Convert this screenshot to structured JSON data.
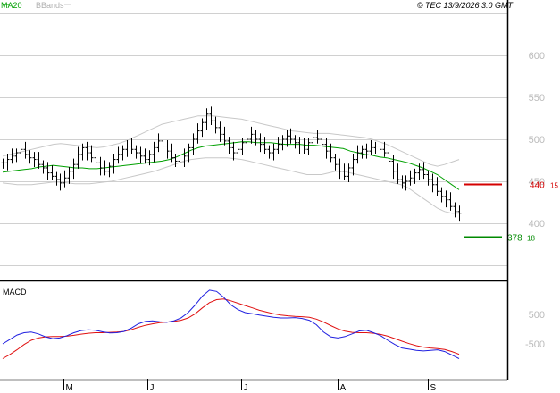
{
  "header": {
    "ma_label": "MA20",
    "bb_label": "BBands",
    "timestamp": "© TEC 13/9/2026 3:0 GMT"
  },
  "colors": {
    "ma": "#00a000",
    "bbands": "#c8c8c8",
    "macd": "#2020e0",
    "signal": "#e01010",
    "candle": "#000000",
    "resistance": "#d40000",
    "support": "#008a00",
    "grid": "#d0d0d0",
    "frame": "#000000"
  },
  "x_labels": [
    "M",
    "J",
    "J",
    "A",
    "S"
  ],
  "chart_data": [
    {
      "type": "candlestick",
      "title": "",
      "ylim": [
        380,
        640
      ],
      "y_ticks": [
        "600",
        "550",
        "500",
        "450",
        "400"
      ],
      "series": [
        {
          "name": "Price",
          "values": [
            472,
            476,
            480,
            484,
            488,
            482,
            478,
            476,
            470,
            466,
            460,
            456,
            452,
            448,
            454,
            462,
            470,
            482,
            490,
            484,
            478,
            472,
            466,
            462,
            468,
            476,
            482,
            488,
            492,
            488,
            484,
            480,
            476,
            482,
            490,
            498,
            492,
            486,
            478,
            474,
            472,
            480,
            490,
            500,
            510,
            520,
            530,
            522,
            514,
            506,
            498,
            490,
            484,
            488,
            496,
            500,
            506,
            500,
            494,
            488,
            484,
            488,
            494,
            500,
            504,
            500,
            496,
            492,
            488,
            496,
            502,
            500,
            494,
            486,
            478,
            470,
            462,
            456,
            466,
            476,
            484,
            488,
            486,
            490,
            492,
            488,
            484,
            474,
            462,
            452,
            448,
            450,
            454,
            460,
            464,
            458,
            452,
            446,
            438,
            432,
            428,
            420,
            414,
            412
          ]
        },
        {
          "name": "MA20",
          "values": [
            461,
            462,
            463,
            464,
            465,
            467,
            468,
            469,
            468,
            467,
            466,
            466,
            465,
            465,
            466,
            467,
            468,
            469,
            470,
            471,
            472,
            473,
            474,
            476,
            479,
            483,
            487,
            490,
            492,
            493,
            494,
            495,
            496,
            497,
            497,
            496,
            496,
            496,
            495,
            494,
            494,
            494,
            493,
            493,
            492,
            491,
            490,
            489,
            486,
            484,
            482,
            481,
            479,
            478,
            476,
            474,
            472,
            469,
            466,
            462,
            458,
            452,
            446,
            440
          ]
        },
        {
          "name": "BBands upper",
          "values": [
            480,
            482,
            484,
            486,
            488,
            490,
            492,
            494,
            495,
            494,
            493,
            492,
            491,
            490,
            491,
            493,
            495,
            498,
            502,
            506,
            510,
            514,
            518,
            520,
            522,
            524,
            526,
            528,
            528,
            528,
            527,
            526,
            525,
            524,
            522,
            520,
            518,
            516,
            514,
            512,
            510,
            509,
            508,
            507,
            507,
            507,
            506,
            505,
            504,
            503,
            502,
            500,
            497,
            494,
            490,
            486,
            482,
            478,
            474,
            470,
            468,
            470,
            473,
            476
          ]
        },
        {
          "name": "BBands lower",
          "values": [
            448,
            447,
            446,
            446,
            446,
            447,
            448,
            449,
            449,
            448,
            447,
            447,
            447,
            448,
            449,
            450,
            452,
            454,
            456,
            458,
            460,
            462,
            465,
            468,
            471,
            474,
            476,
            477,
            478,
            478,
            478,
            478,
            477,
            476,
            474,
            472,
            470,
            468,
            466,
            464,
            462,
            460,
            458,
            458,
            458,
            460,
            462,
            462,
            460,
            458,
            456,
            454,
            452,
            450,
            448,
            446,
            442,
            436,
            430,
            424,
            418,
            414,
            412,
            412
          ]
        }
      ],
      "markers": [
        {
          "label": "440",
          "sub": "15",
          "value": 440,
          "role": "resistance"
        },
        {
          "label": "378",
          "sub": "18",
          "value": 378,
          "role": "support"
        }
      ]
    },
    {
      "type": "line",
      "title": "MACD",
      "ylim": [
        -1100,
        1500
      ],
      "y_ticks": [
        "500",
        "-500"
      ],
      "series": [
        {
          "name": "MACD",
          "values": [
            -500,
            -350,
            -200,
            -120,
            -100,
            -160,
            -260,
            -320,
            -300,
            -220,
            -120,
            -50,
            -20,
            -40,
            -90,
            -130,
            -120,
            -80,
            30,
            180,
            260,
            280,
            250,
            230,
            280,
            380,
            560,
            820,
            1120,
            1320,
            1280,
            1080,
            820,
            660,
            560,
            520,
            480,
            440,
            400,
            380,
            380,
            390,
            360,
            300,
            150,
            -100,
            -260,
            -300,
            -250,
            -160,
            -60,
            -40,
            -120,
            -220,
            -380,
            -520,
            -640,
            -680,
            -720,
            -740,
            -720,
            -700,
            -760,
            -880,
            -1000
          ]
        },
        {
          "name": "Signal",
          "values": [
            -1000,
            -860,
            -700,
            -520,
            -380,
            -300,
            -260,
            -250,
            -250,
            -240,
            -210,
            -170,
            -140,
            -120,
            -120,
            -110,
            -100,
            -80,
            -20,
            60,
            130,
            180,
            220,
            240,
            260,
            300,
            380,
            520,
            720,
            900,
            1000,
            1020,
            960,
            880,
            800,
            720,
            640,
            580,
            520,
            480,
            450,
            430,
            420,
            400,
            340,
            240,
            120,
            10,
            -70,
            -110,
            -120,
            -120,
            -140,
            -180,
            -240,
            -320,
            -410,
            -490,
            -560,
            -610,
            -640,
            -660,
            -690,
            -760,
            -850
          ]
        }
      ]
    }
  ]
}
